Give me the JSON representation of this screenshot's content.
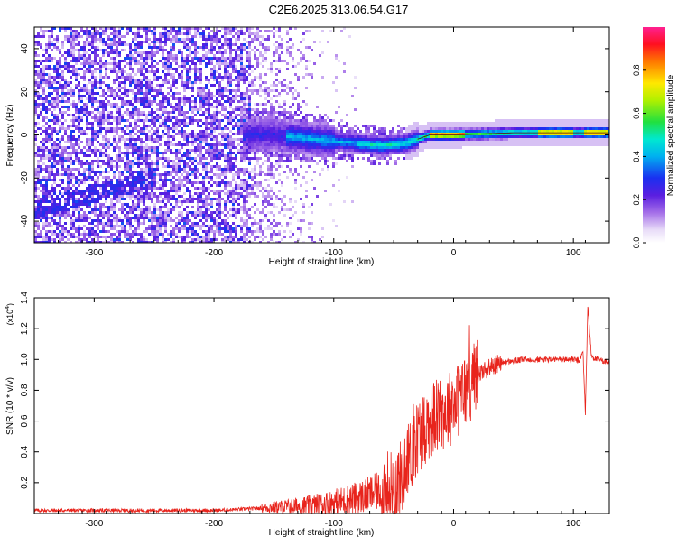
{
  "title": "C2E6.2025.313.06.54.G17",
  "colors": {
    "snr_line": "#e8241c",
    "axis": "#000000"
  },
  "chart_data": [
    {
      "type": "heatmap",
      "xlabel": "Height of straight line (km)",
      "ylabel": "Frequency (Hz)",
      "xlim": [
        -350,
        130
      ],
      "ylim": [
        -50,
        50
      ],
      "x_ticks": [
        -300,
        -200,
        -100,
        0,
        100
      ],
      "y_ticks": [
        -40,
        -20,
        0,
        20,
        40
      ],
      "colorbar": {
        "label": "Normalized spectral amplitude",
        "range": [
          0,
          1
        ],
        "ticks": [
          0.0,
          0.2,
          0.4,
          0.6,
          0.8
        ],
        "colormap": "rainbow: white-lavender → violet → blue → cyan → green → yellow → red → magenta"
      },
      "description_features": {
        "noise_region_x": [
          -350,
          -110
        ],
        "signal_onset_x": -170,
        "carrier_frequency_hz_by_height": [
          [
            -150,
            0
          ],
          [
            -100,
            -3
          ],
          [
            -60,
            -5
          ],
          [
            -40,
            -4
          ],
          [
            -20,
            0
          ],
          [
            0,
            0
          ],
          [
            50,
            1
          ],
          [
            100,
            1
          ],
          [
            130,
            1
          ]
        ],
        "peak_amplitude_regions_x": [
          [
            -20,
            10
          ],
          [
            70,
            100
          ],
          [
            110,
            130
          ]
        ]
      }
    },
    {
      "type": "line",
      "xlabel": "Height of straight line (km)",
      "ylabel": "SNR (10 * v/v)",
      "y_multiplier": "(x10",
      "y_multiplier_exp": "4",
      "xlim": [
        -350,
        130
      ],
      "ylim": [
        0,
        1.4
      ],
      "x_ticks": [
        -300,
        -200,
        -100,
        0,
        100
      ],
      "y_ticks": [
        0.2,
        0.4,
        0.6,
        0.8,
        1.0,
        1.2,
        1.4
      ],
      "series": [
        {
          "x": [
            -350,
            -300,
            -250,
            -200,
            -170,
            -150,
            -120,
            -100,
            -80,
            -60,
            -50,
            -45,
            -40,
            -35,
            -30,
            -25,
            -20,
            -10,
            0,
            10,
            20,
            30,
            40,
            60,
            80,
            100,
            105,
            108,
            110,
            112,
            115,
            120,
            130
          ],
          "y": [
            0.02,
            0.02,
            0.02,
            0.02,
            0.03,
            0.04,
            0.05,
            0.07,
            0.1,
            0.15,
            0.18,
            0.22,
            0.3,
            0.4,
            0.5,
            0.55,
            0.6,
            0.65,
            0.7,
            0.8,
            0.9,
            0.95,
            0.98,
            1.0,
            1.0,
            1.0,
            0.99,
            1.05,
            0.65,
            1.35,
            1.02,
            1.0,
            0.98
          ]
        }
      ]
    }
  ]
}
